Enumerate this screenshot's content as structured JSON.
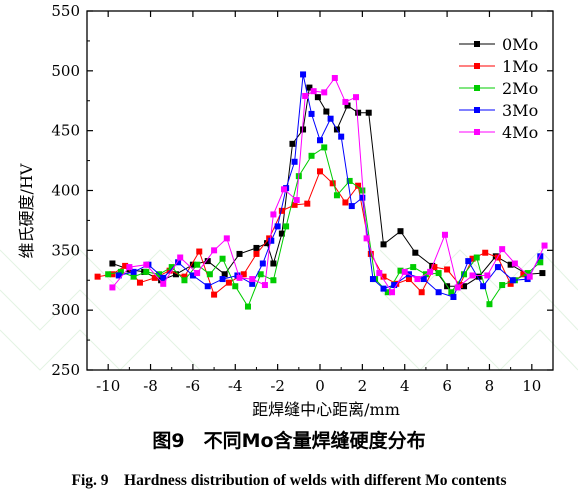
{
  "caption": {
    "cn": "图9　不同Mo含量焊缝硬度分布",
    "en": "Fig. 9　Hardness distribution of welds with different Mo contents"
  },
  "chart_data": {
    "type": "line",
    "title": "",
    "xlabel": "距焊缝中心距离/mm",
    "ylabel": "维氏硬度/HV",
    "xlim": [
      -11,
      11
    ],
    "ylim": [
      250,
      550
    ],
    "xticks": [
      -10,
      -8,
      -6,
      -4,
      -2,
      0,
      2,
      4,
      6,
      8,
      10
    ],
    "yticks": [
      250,
      300,
      350,
      400,
      450,
      500,
      550
    ],
    "grid": false,
    "legend_position": "top-right",
    "series": [
      {
        "name": "0Mo",
        "color": "#000000",
        "x": [
          -9.8,
          -9.0,
          -8.3,
          -7.5,
          -6.8,
          -6.0,
          -5.3,
          -4.5,
          -3.8,
          -3.0,
          -2.5,
          -2.2,
          -1.8,
          -1.3,
          -0.8,
          -0.5,
          -0.1,
          0.3,
          0.8,
          1.3,
          1.8,
          2.3,
          3.0,
          3.8,
          4.5,
          5.3,
          6.0,
          6.8,
          7.5,
          8.3,
          9.0,
          9.8,
          10.5
        ],
        "values": [
          339,
          334,
          332,
          325,
          330,
          338,
          341,
          330,
          347,
          352,
          356,
          339,
          364,
          439,
          451,
          486,
          478,
          466,
          451,
          471,
          465,
          465,
          355,
          366,
          348,
          337,
          320,
          320,
          328,
          345,
          338,
          330,
          331
        ]
      },
      {
        "name": "1Mo",
        "color": "#ff0000",
        "x": [
          -10.5,
          -9.8,
          -9.2,
          -8.5,
          -7.8,
          -7.1,
          -6.4,
          -5.7,
          -5.0,
          -4.3,
          -3.6,
          -3.0,
          -2.4,
          -1.8,
          -1.2,
          -0.6,
          0.0,
          0.6,
          1.2,
          1.8,
          2.4,
          3.0,
          3.6,
          4.2,
          4.8,
          5.4,
          6.0,
          6.6,
          7.2,
          7.8,
          8.4,
          9.0,
          9.6
        ],
        "values": [
          328,
          330,
          337,
          323,
          327,
          333,
          328,
          349,
          313,
          323,
          330,
          347,
          360,
          383,
          388,
          389,
          416,
          406,
          390,
          404,
          347,
          328,
          322,
          326,
          315,
          336,
          334,
          321,
          343,
          348,
          344,
          322,
          330
        ]
      },
      {
        "name": "2Mo",
        "color": "#00cc00",
        "x": [
          -10.0,
          -9.4,
          -8.8,
          -8.2,
          -7.6,
          -7.0,
          -6.4,
          -5.8,
          -5.2,
          -4.6,
          -4.0,
          -3.4,
          -2.8,
          -2.2,
          -1.6,
          -1.0,
          -0.4,
          0.2,
          0.8,
          1.4,
          2.0,
          2.6,
          3.2,
          3.8,
          4.4,
          5.0,
          5.6,
          6.2,
          6.8,
          7.4,
          8.0,
          8.6,
          9.2,
          9.8,
          10.4
        ],
        "values": [
          330,
          332,
          328,
          332,
          330,
          336,
          325,
          338,
          330,
          343,
          320,
          303,
          330,
          325,
          370,
          412,
          429,
          436,
          396,
          408,
          400,
          326,
          315,
          333,
          336,
          330,
          331,
          315,
          330,
          344,
          305,
          321,
          325,
          331,
          340
        ]
      },
      {
        "name": "3Mo",
        "color": "#0000ff",
        "x": [
          -9.5,
          -8.8,
          -8.1,
          -7.4,
          -6.7,
          -6.0,
          -5.3,
          -4.6,
          -3.9,
          -3.2,
          -2.7,
          -2.3,
          -2.0,
          -1.6,
          -1.2,
          -0.8,
          -0.4,
          0.0,
          0.5,
          1.0,
          1.5,
          2.0,
          2.5,
          3.0,
          3.5,
          4.2,
          4.9,
          5.6,
          6.3,
          7.0,
          7.7,
          8.4,
          9.1,
          9.8,
          10.4
        ],
        "values": [
          329,
          332,
          338,
          327,
          340,
          329,
          320,
          326,
          329,
          322,
          339,
          358,
          370,
          402,
          424,
          497,
          464,
          442,
          460,
          445,
          387,
          394,
          326,
          318,
          321,
          330,
          326,
          315,
          311,
          341,
          320,
          336,
          325,
          326,
          345
        ]
      },
      {
        "name": "4Mo",
        "color": "#ff00ff",
        "x": [
          -9.8,
          -9.0,
          -8.2,
          -7.4,
          -6.6,
          -5.8,
          -5.0,
          -4.4,
          -3.8,
          -3.2,
          -2.6,
          -2.2,
          -1.7,
          -1.1,
          -0.7,
          -0.3,
          0.2,
          0.7,
          1.2,
          1.7,
          2.2,
          2.8,
          3.4,
          4.0,
          4.6,
          5.2,
          5.9,
          6.5,
          7.2,
          7.9,
          8.6,
          9.2,
          9.9,
          10.6
        ],
        "values": [
          319,
          336,
          338,
          322,
          344,
          331,
          350,
          360,
          327,
          326,
          321,
          380,
          401,
          392,
          479,
          483,
          482,
          494,
          474,
          478,
          360,
          331,
          315,
          332,
          326,
          332,
          363,
          319,
          329,
          329,
          351,
          339,
          328,
          354
        ]
      }
    ]
  }
}
